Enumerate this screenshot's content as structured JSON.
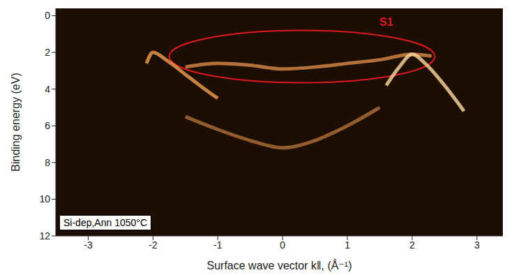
{
  "chart_data": {
    "type": "line",
    "x_label": "Surface wave vector k‖, (Å⁻¹)",
    "y_label": "Binding energy (eV)",
    "xlim": [
      -3.5,
      3.4
    ],
    "xticks": [
      -3,
      -2,
      -1,
      0,
      1,
      2,
      3
    ],
    "ylim": [
      12,
      -0.4
    ],
    "yticks": [
      0,
      2,
      4,
      6,
      8,
      10,
      12
    ],
    "grid": false,
    "series": [
      {
        "color": "#f0a050",
        "x": [
          -2.1,
          -2.0,
          -1.8,
          -1.5,
          -1.2,
          -1.0
        ],
        "values": [
          2.6,
          2.0,
          2.4,
          3.2,
          4.0,
          4.5
        ]
      },
      {
        "color": "#d98a45",
        "x": [
          -1.5,
          -1.0,
          -0.5,
          0.0,
          0.5,
          1.0,
          1.5,
          2.0,
          2.3
        ],
        "values": [
          2.8,
          2.6,
          2.7,
          2.9,
          2.8,
          2.6,
          2.4,
          2.1,
          2.2
        ]
      },
      {
        "color": "#ffd9a0",
        "x": [
          1.6,
          1.8,
          2.0,
          2.2,
          2.5,
          2.8
        ],
        "values": [
          3.8,
          2.8,
          2.1,
          2.6,
          3.8,
          5.2
        ]
      },
      {
        "color": "#b0703a",
        "x": [
          -1.5,
          -1.0,
          -0.5,
          0.0,
          0.5,
          1.0,
          1.5
        ],
        "values": [
          5.5,
          6.2,
          6.8,
          7.2,
          6.8,
          6.0,
          5.0
        ]
      }
    ],
    "annotations": [
      {
        "text": "S1",
        "shape": "ellipse",
        "xlim": [
          -1.75,
          2.35
        ],
        "ylim": [
          0.8,
          3.65
        ],
        "label_x": 1.6,
        "label_y": 0.35,
        "color": "#e0191e"
      }
    ],
    "note": "Si-dep,Ann 1050°C"
  }
}
